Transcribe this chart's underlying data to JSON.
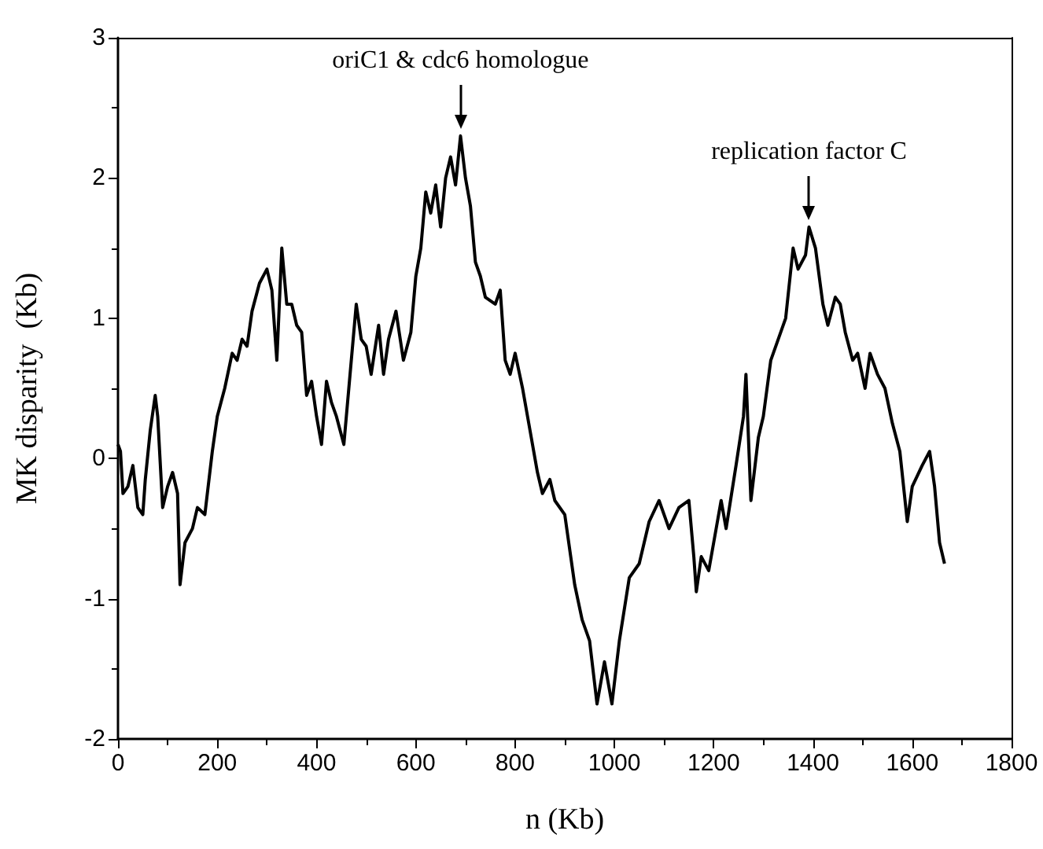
{
  "chart_data": {
    "type": "line",
    "xlabel": "n (Kb)",
    "ylabel": "MK disparity  (Kb)",
    "xlim": [
      0,
      1800
    ],
    "xticks": [
      0,
      200,
      400,
      600,
      800,
      1000,
      1200,
      1400,
      1600,
      1800
    ],
    "ylim": [
      -2,
      3
    ],
    "yticks": [
      -2,
      -1,
      0,
      1,
      2,
      3
    ],
    "grid": false,
    "marker": "none",
    "line_style": "solid",
    "annotations": [
      {
        "text": "oriC1 & cdc6 homologue",
        "x": 690,
        "y": 2.3
      },
      {
        "text": "replication factor C",
        "x": 1392,
        "y": 1.65
      }
    ],
    "series": [
      {
        "color": "#000000",
        "x": [
          0,
          5,
          10,
          20,
          30,
          40,
          50,
          55,
          65,
          75,
          80,
          90,
          100,
          110,
          120,
          125,
          135,
          150,
          160,
          175,
          190,
          200,
          215,
          230,
          240,
          250,
          260,
          270,
          285,
          300,
          310,
          320,
          330,
          340,
          350,
          360,
          370,
          380,
          390,
          400,
          410,
          420,
          430,
          440,
          455,
          465,
          480,
          490,
          500,
          510,
          525,
          535,
          545,
          560,
          575,
          590,
          600,
          610,
          620,
          630,
          640,
          650,
          660,
          670,
          680,
          690,
          700,
          710,
          720,
          730,
          740,
          760,
          770,
          780,
          790,
          800,
          815,
          830,
          845,
          855,
          870,
          880,
          900,
          920,
          935,
          950,
          965,
          980,
          995,
          1010,
          1030,
          1050,
          1070,
          1090,
          1110,
          1130,
          1150,
          1160,
          1165,
          1175,
          1190,
          1200,
          1215,
          1225,
          1245,
          1260,
          1265,
          1275,
          1290,
          1300,
          1315,
          1330,
          1345,
          1360,
          1370,
          1385,
          1392,
          1405,
          1420,
          1430,
          1445,
          1455,
          1465,
          1480,
          1490,
          1505,
          1515,
          1530,
          1545,
          1560,
          1575,
          1590,
          1600,
          1620,
          1635,
          1645,
          1655,
          1665
        ],
        "values": [
          0.1,
          0.05,
          -0.25,
          -0.2,
          -0.05,
          -0.35,
          -0.4,
          -0.15,
          0.2,
          0.45,
          0.3,
          -0.35,
          -0.2,
          -0.1,
          -0.25,
          -0.9,
          -0.6,
          -0.5,
          -0.35,
          -0.4,
          0.05,
          0.3,
          0.5,
          0.75,
          0.7,
          0.85,
          0.8,
          1.05,
          1.25,
          1.35,
          1.2,
          0.7,
          1.5,
          1.1,
          1.1,
          0.95,
          0.9,
          0.45,
          0.55,
          0.3,
          0.1,
          0.55,
          0.4,
          0.3,
          0.1,
          0.5,
          1.1,
          0.85,
          0.8,
          0.6,
          0.95,
          0.6,
          0.85,
          1.05,
          0.7,
          0.9,
          1.3,
          1.5,
          1.9,
          1.75,
          1.95,
          1.65,
          2.0,
          2.15,
          1.95,
          2.3,
          2.0,
          1.8,
          1.4,
          1.3,
          1.15,
          1.1,
          1.2,
          0.7,
          0.6,
          0.75,
          0.5,
          0.2,
          -0.1,
          -0.25,
          -0.15,
          -0.3,
          -0.4,
          -0.9,
          -1.15,
          -1.3,
          -1.75,
          -1.45,
          -1.75,
          -1.3,
          -0.85,
          -0.75,
          -0.45,
          -0.3,
          -0.5,
          -0.35,
          -0.3,
          -0.7,
          -0.95,
          -0.7,
          -0.8,
          -0.6,
          -0.3,
          -0.5,
          -0.05,
          0.3,
          0.6,
          -0.3,
          0.15,
          0.3,
          0.7,
          0.85,
          1.0,
          1.5,
          1.35,
          1.45,
          1.65,
          1.5,
          1.1,
          0.95,
          1.15,
          1.1,
          0.9,
          0.7,
          0.75,
          0.5,
          0.75,
          0.6,
          0.5,
          0.25,
          0.05,
          -0.45,
          -0.2,
          -0.05,
          0.05,
          -0.2,
          -0.6,
          -0.75
        ]
      }
    ]
  }
}
